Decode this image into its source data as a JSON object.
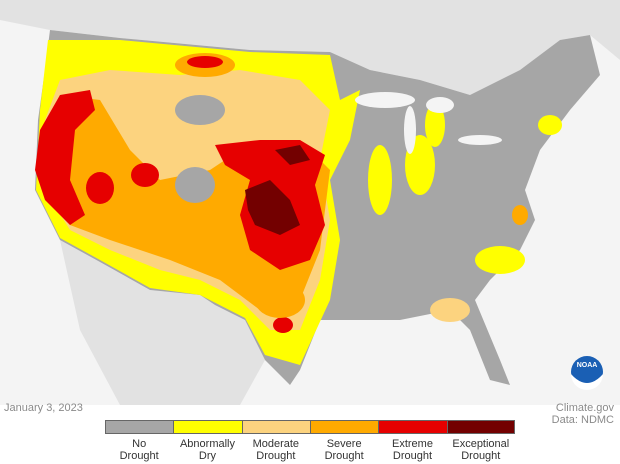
{
  "map": {
    "date": "January 3, 2023",
    "credit": "Climate.gov",
    "source": "Data: NDMC",
    "logo": "NOAA"
  },
  "legend": {
    "items": [
      {
        "label": "No Drought",
        "color": "#a6a6a6"
      },
      {
        "label": "Abnormally Dry",
        "color": "#ffff00"
      },
      {
        "label": "Moderate Drought",
        "color": "#fcd37f"
      },
      {
        "label": "Severe Drought",
        "color": "#ffaa00"
      },
      {
        "label": "Extreme Drought",
        "color": "#e60000"
      },
      {
        "label": "Exceptional Drought",
        "color": "#730000"
      }
    ]
  }
}
